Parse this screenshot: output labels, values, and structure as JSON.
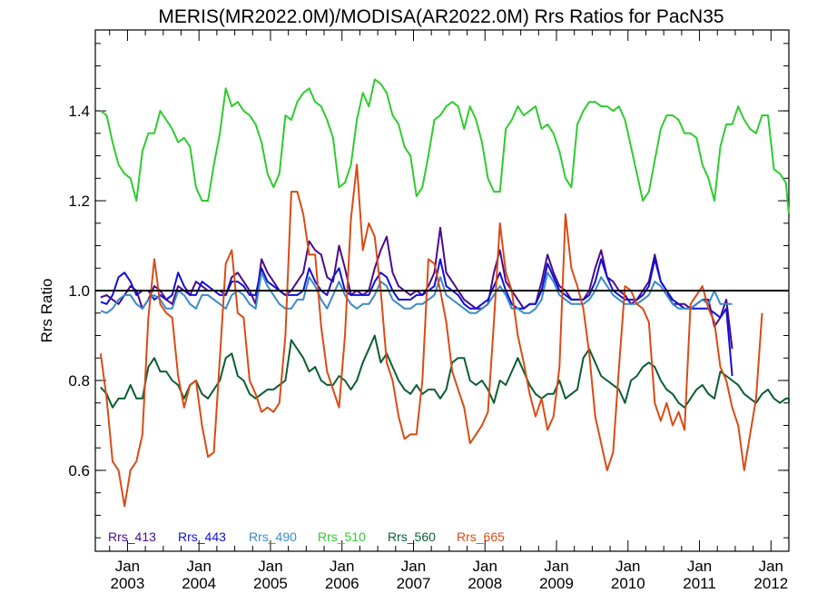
{
  "chart_data": {
    "type": "line",
    "title": "MERIS(MR2022.0M)/MODISA(AR2022.0M)  Rrs Ratios for PacN35",
    "ylabel": "Rrs Ratio",
    "xlabel": "",
    "xlim": [
      2002.55,
      2012.25
    ],
    "ylim": [
      0.42,
      1.58
    ],
    "x_ticks": [
      {
        "x": 2003.0,
        "lines": [
          "Jan",
          "2003"
        ]
      },
      {
        "x": 2004.0,
        "lines": [
          "Jan",
          "2004"
        ]
      },
      {
        "x": 2005.0,
        "lines": [
          "Jan",
          "2005"
        ]
      },
      {
        "x": 2006.0,
        "lines": [
          "Jan",
          "2006"
        ]
      },
      {
        "x": 2007.0,
        "lines": [
          "Jan",
          "2007"
        ]
      },
      {
        "x": 2008.0,
        "lines": [
          "Jan",
          "2008"
        ]
      },
      {
        "x": 2009.0,
        "lines": [
          "Jan",
          "2009"
        ]
      },
      {
        "x": 2010.0,
        "lines": [
          "Jan",
          "2010"
        ]
      },
      {
        "x": 2011.0,
        "lines": [
          "Jan",
          "2011"
        ]
      },
      {
        "x": 2012.0,
        "lines": [
          "Jan",
          "2012"
        ]
      }
    ],
    "y_ticks": [
      {
        "value": 0.6,
        "label": "0.6"
      },
      {
        "value": 0.8,
        "label": "0.8"
      },
      {
        "value": 1.0,
        "label": "1.0"
      },
      {
        "value": 1.2,
        "label": "1.2"
      },
      {
        "value": 1.4,
        "label": "1.4"
      }
    ],
    "reference_line": {
      "y": 1.0,
      "color": "#000000"
    },
    "grid": false,
    "legend_position": "bottom-left",
    "x_start": 2002.625,
    "x_step": 0.0833333,
    "series": [
      {
        "name": "Rrs_413",
        "color": "#4b0a8a",
        "values": [
          0.985,
          0.99,
          0.98,
          0.97,
          0.99,
          1.01,
          1.0,
          0.96,
          0.98,
          1.01,
          1.0,
          0.98,
          0.97,
          1.01,
          1.0,
          0.99,
          1.02,
          1.01,
          1.0,
          1.0,
          1.0,
          0.99,
          1.03,
          1.04,
          1.02,
          1.0,
          0.97,
          1.07,
          1.04,
          1.02,
          1.0,
          0.99,
          1.0,
          1.02,
          1.04,
          1.11,
          1.09,
          1.08,
          1.03,
          1.02,
          1.1,
          1.05,
          0.99,
          1.0,
          0.99,
          1.0,
          1.05,
          1.09,
          1.12,
          1.04,
          1.01,
          1.0,
          0.99,
          1.0,
          0.99,
          1.01,
          1.04,
          1.14,
          1.04,
          1.02,
          1.0,
          0.98,
          0.97,
          0.96,
          0.96,
          0.97,
          1.04,
          1.09,
          1.02,
          1.0,
          0.98,
          0.96,
          0.97,
          0.97,
          1.02,
          1.08,
          1.04,
          1.01,
          1.0,
          0.98,
          0.98,
          0.98,
          1.0,
          1.05,
          1.09,
          1.03,
          1.02,
          1.0,
          0.99,
          0.97,
          0.98,
          1.0,
          1.02,
          1.08,
          1.02,
          1.0,
          0.97,
          0.97,
          0.97,
          0.96,
          0.97,
          0.98,
          0.98,
          0.92,
          0.94,
          0.98,
          0.87
        ]
      },
      {
        "name": "Rrs_443",
        "color": "#1010d8",
        "values": [
          0.975,
          0.97,
          0.99,
          1.03,
          1.04,
          1.02,
          0.99,
          1.0,
          1.0,
          0.98,
          0.99,
          0.98,
          0.99,
          1.04,
          1.01,
          0.99,
          0.99,
          1.02,
          1.01,
          1.0,
          0.99,
          0.99,
          1.02,
          1.02,
          1.01,
          0.99,
          0.99,
          1.05,
          1.02,
          1.01,
          1.0,
          0.99,
          0.99,
          0.99,
          1.0,
          1.05,
          1.02,
          1.0,
          0.99,
          1.03,
          1.05,
          1.0,
          0.99,
          0.99,
          0.99,
          0.99,
          1.02,
          1.04,
          1.03,
          1.0,
          0.98,
          0.98,
          0.98,
          0.99,
          0.99,
          1.0,
          1.01,
          1.07,
          1.01,
          1.0,
          0.99,
          0.97,
          0.96,
          0.96,
          0.97,
          0.98,
          1.01,
          1.04,
          1.0,
          0.97,
          0.96,
          0.96,
          0.97,
          0.97,
          1.0,
          1.06,
          1.03,
          1.0,
          0.99,
          0.98,
          0.98,
          0.98,
          0.99,
          1.02,
          1.07,
          1.03,
          1.0,
          0.99,
          0.98,
          0.98,
          0.98,
          0.99,
          1.01,
          1.07,
          1.02,
          1.0,
          0.98,
          0.97,
          0.96,
          0.96,
          0.96,
          0.96,
          0.96,
          0.95,
          0.94,
          0.96,
          0.81
        ]
      },
      {
        "name": "Rrs_490",
        "color": "#3a8bc6",
        "values": [
          0.955,
          0.95,
          0.96,
          0.98,
          0.99,
          0.99,
          0.97,
          0.96,
          0.98,
          0.99,
          0.98,
          0.96,
          0.96,
          1.0,
          0.99,
          0.97,
          0.96,
          0.99,
          0.99,
          0.98,
          0.97,
          0.96,
          0.99,
          1.0,
          0.99,
          0.97,
          0.96,
          1.04,
          1.01,
          0.99,
          0.97,
          0.96,
          0.96,
          0.98,
          0.98,
          1.03,
          1.01,
          0.98,
          0.96,
          0.99,
          1.02,
          0.99,
          0.97,
          0.96,
          0.97,
          0.97,
          0.99,
          1.02,
          1.01,
          0.98,
          0.97,
          0.96,
          0.96,
          0.97,
          0.97,
          0.98,
          0.99,
          1.03,
          0.99,
          0.98,
          0.97,
          0.96,
          0.95,
          0.95,
          0.96,
          0.97,
          0.99,
          1.01,
          0.99,
          0.96,
          0.96,
          0.95,
          0.95,
          0.96,
          0.98,
          1.04,
          1.02,
          0.99,
          0.98,
          0.97,
          0.97,
          0.97,
          0.98,
          1.0,
          1.03,
          1.01,
          0.99,
          0.98,
          0.97,
          0.97,
          0.97,
          0.98,
          0.99,
          1.02,
          1.01,
          0.99,
          0.97,
          0.96,
          0.96,
          0.96,
          0.97,
          0.98,
          0.97,
          1.0,
          0.97,
          0.97,
          0.97
        ]
      },
      {
        "name": "Rrs_510",
        "color": "#2ecc2e",
        "values": [
          1.4,
          1.39,
          1.33,
          1.28,
          1.26,
          1.25,
          1.2,
          1.31,
          1.35,
          1.35,
          1.4,
          1.38,
          1.36,
          1.33,
          1.34,
          1.32,
          1.23,
          1.2,
          1.2,
          1.28,
          1.35,
          1.45,
          1.41,
          1.42,
          1.4,
          1.39,
          1.37,
          1.33,
          1.26,
          1.23,
          1.26,
          1.39,
          1.38,
          1.42,
          1.44,
          1.45,
          1.42,
          1.41,
          1.38,
          1.34,
          1.23,
          1.24,
          1.28,
          1.38,
          1.44,
          1.41,
          1.47,
          1.46,
          1.44,
          1.39,
          1.37,
          1.32,
          1.3,
          1.21,
          1.23,
          1.3,
          1.38,
          1.39,
          1.41,
          1.42,
          1.41,
          1.36,
          1.41,
          1.38,
          1.33,
          1.25,
          1.22,
          1.22,
          1.36,
          1.38,
          1.41,
          1.39,
          1.4,
          1.41,
          1.36,
          1.37,
          1.35,
          1.31,
          1.25,
          1.23,
          1.37,
          1.4,
          1.42,
          1.42,
          1.41,
          1.41,
          1.4,
          1.41,
          1.38,
          1.32,
          1.26,
          1.2,
          1.22,
          1.29,
          1.36,
          1.39,
          1.39,
          1.38,
          1.35,
          1.35,
          1.34,
          1.28,
          1.25,
          1.2,
          1.32,
          1.37,
          1.37,
          1.41,
          1.38,
          1.36,
          1.35,
          1.39,
          1.39,
          1.27,
          1.26,
          1.24,
          1.17
        ]
      },
      {
        "name": "Rrs_560",
        "color": "#0b5e32",
        "values": [
          0.785,
          0.77,
          0.74,
          0.76,
          0.76,
          0.79,
          0.76,
          0.76,
          0.83,
          0.85,
          0.82,
          0.82,
          0.8,
          0.79,
          0.76,
          0.79,
          0.8,
          0.77,
          0.76,
          0.78,
          0.8,
          0.85,
          0.86,
          0.81,
          0.8,
          0.77,
          0.76,
          0.77,
          0.78,
          0.78,
          0.79,
          0.8,
          0.89,
          0.87,
          0.85,
          0.82,
          0.83,
          0.8,
          0.79,
          0.79,
          0.81,
          0.8,
          0.78,
          0.8,
          0.84,
          0.87,
          0.9,
          0.84,
          0.86,
          0.83,
          0.8,
          0.78,
          0.77,
          0.79,
          0.77,
          0.78,
          0.78,
          0.76,
          0.78,
          0.84,
          0.85,
          0.85,
          0.8,
          0.79,
          0.8,
          0.78,
          0.75,
          0.8,
          0.79,
          0.82,
          0.85,
          0.82,
          0.79,
          0.77,
          0.76,
          0.77,
          0.77,
          0.8,
          0.76,
          0.77,
          0.78,
          0.85,
          0.87,
          0.84,
          0.81,
          0.8,
          0.79,
          0.78,
          0.75,
          0.8,
          0.81,
          0.83,
          0.84,
          0.83,
          0.8,
          0.78,
          0.77,
          0.75,
          0.74,
          0.76,
          0.78,
          0.79,
          0.77,
          0.76,
          0.82,
          0.81,
          0.8,
          0.79,
          0.77,
          0.76,
          0.75,
          0.77,
          0.78,
          0.76,
          0.75,
          0.76,
          0.76,
          0.75
        ]
      },
      {
        "name": "Rrs_665",
        "color": "#d94b14",
        "values": [
          0.86,
          0.76,
          0.62,
          0.6,
          0.52,
          0.6,
          0.62,
          0.68,
          0.94,
          1.07,
          0.97,
          0.95,
          0.94,
          0.81,
          0.74,
          0.79,
          0.8,
          0.7,
          0.63,
          0.64,
          0.85,
          1.06,
          1.09,
          0.95,
          0.94,
          0.8,
          0.77,
          0.73,
          0.74,
          0.73,
          0.75,
          0.9,
          1.22,
          1.22,
          1.17,
          1.08,
          1.08,
          0.92,
          0.82,
          0.78,
          0.74,
          0.9,
          1.16,
          1.28,
          1.09,
          1.15,
          1.12,
          1.0,
          0.84,
          0.8,
          0.72,
          0.67,
          0.68,
          0.68,
          0.8,
          1.07,
          1.06,
          1.0,
          0.93,
          0.82,
          0.78,
          0.74,
          0.66,
          0.68,
          0.7,
          0.73,
          0.93,
          1.15,
          1.04,
          1.0,
          0.9,
          0.84,
          0.77,
          0.72,
          0.76,
          0.69,
          0.72,
          0.83,
          1.17,
          1.05,
          1.01,
          0.96,
          0.86,
          0.72,
          0.66,
          0.6,
          0.64,
          0.83,
          1.01,
          1.0,
          0.97,
          0.96,
          0.93,
          0.75,
          0.71,
          0.75,
          0.7,
          0.73,
          0.69,
          0.97,
          0.99,
          1.01,
          0.96,
          0.93,
          0.83,
          0.8,
          0.74,
          0.7,
          0.6,
          0.68,
          0.76,
          0.95
        ]
      }
    ]
  }
}
